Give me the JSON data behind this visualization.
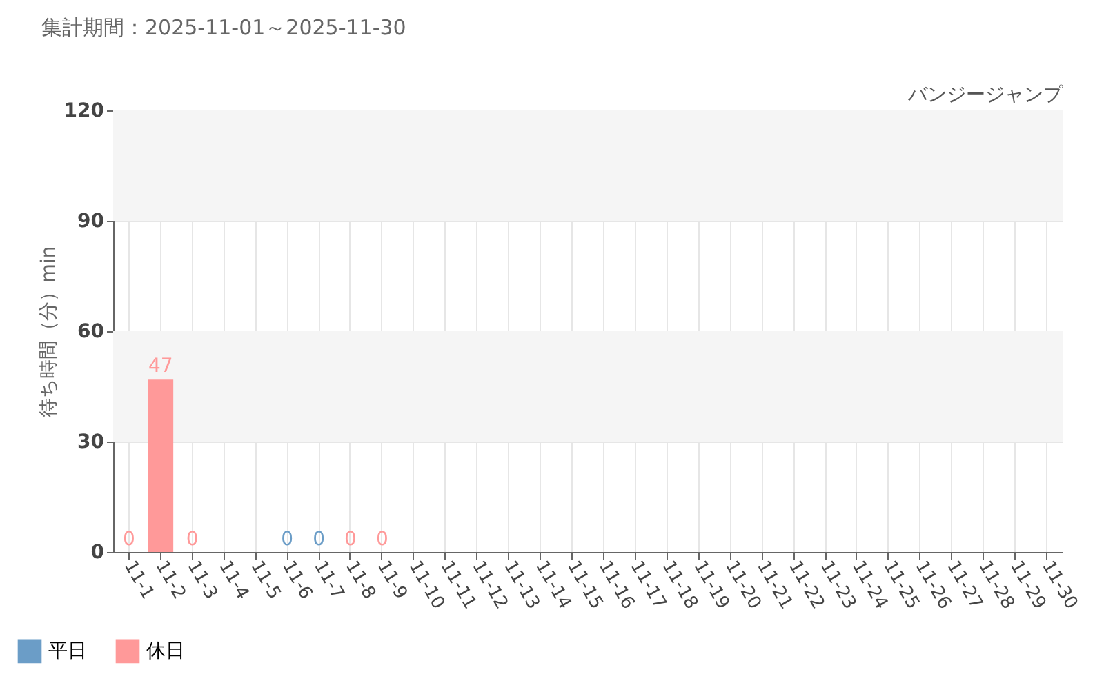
{
  "chart_data": {
    "type": "bar",
    "title": "集計期間：2025-11-01～2025-11-30",
    "subtitle": "バンジージャンプ",
    "ylabel": "待ち時間（分）min",
    "categories": [
      "11-1",
      "11-2",
      "11-3",
      "11-4",
      "11-5",
      "11-6",
      "11-7",
      "11-8",
      "11-9",
      "11-10",
      "11-11",
      "11-12",
      "11-13",
      "11-14",
      "11-15",
      "11-16",
      "11-17",
      "11-18",
      "11-19",
      "11-20",
      "11-21",
      "11-22",
      "11-23",
      "11-24",
      "11-25",
      "11-26",
      "11-27",
      "11-28",
      "11-29",
      "11-30"
    ],
    "series": [
      {
        "name": "平日",
        "color": "#6b9dc7",
        "values": [
          null,
          null,
          null,
          null,
          null,
          0,
          0,
          null,
          null,
          null,
          null,
          null,
          null,
          null,
          null,
          null,
          null,
          null,
          null,
          null,
          null,
          null,
          null,
          null,
          null,
          null,
          null,
          null,
          null,
          null
        ]
      },
      {
        "name": "休日",
        "color": "#ff9999",
        "values": [
          0,
          47,
          0,
          null,
          null,
          null,
          null,
          0,
          0,
          null,
          null,
          null,
          null,
          null,
          null,
          null,
          null,
          null,
          null,
          null,
          null,
          null,
          null,
          null,
          null,
          null,
          null,
          null,
          null,
          null
        ]
      }
    ],
    "ylim": [
      0,
      120
    ],
    "yticks": [
      0,
      30,
      60,
      90,
      120
    ],
    "grid": true,
    "legend": "bottom left",
    "data_labels": true,
    "bands": [
      {
        "axis": "y",
        "from": 30,
        "to": 60,
        "color": "#f5f5f5"
      },
      {
        "axis": "y",
        "from": 90,
        "to": 120,
        "color": "#f5f5f5"
      }
    ]
  }
}
